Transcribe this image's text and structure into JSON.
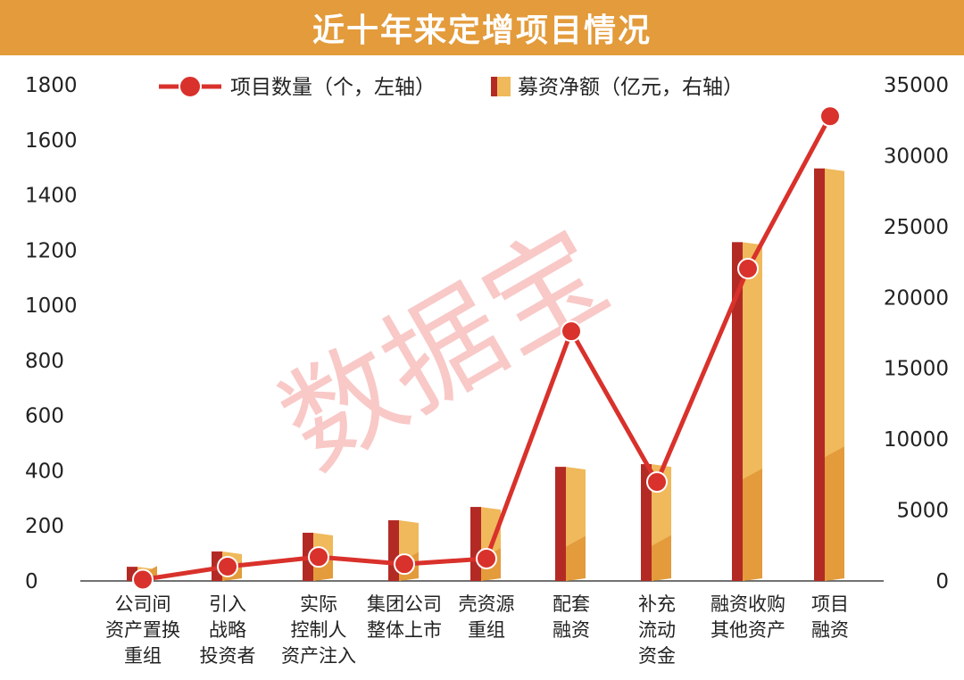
{
  "chart_data": {
    "type": "bar+line",
    "title": "近十年来定增项目情况",
    "categories": [
      [
        "公司间",
        "资产置换",
        "重组"
      ],
      [
        "引入",
        "战略",
        "投资者"
      ],
      [
        "实际",
        "控制人",
        "资产注入"
      ],
      [
        "集团公司",
        "整体上市"
      ],
      [
        "壳资源",
        "重组"
      ],
      [
        "配套",
        "融资"
      ],
      [
        "补充",
        "流动",
        "资金"
      ],
      [
        "融资收购",
        "其他资产"
      ],
      [
        "项目",
        "融资"
      ]
    ],
    "series": [
      {
        "name": "项目数量（个，左轴）",
        "type": "line",
        "axis": "left",
        "color": "#D9312B",
        "values": [
          5,
          52,
          87,
          61,
          81,
          906,
          359,
          1133,
          1686
        ]
      },
      {
        "name": "募资净额（亿元，右轴）",
        "type": "bar",
        "axis": "right",
        "color": "#E9A443",
        "values": [
          1000,
          2080,
          3400,
          4280,
          5220,
          8050,
          8240,
          23900,
          29100
        ]
      }
    ],
    "left_axis": {
      "ylim": [
        0,
        1800
      ],
      "ticks": [
        "0",
        "200",
        "400",
        "600",
        "800",
        "1000",
        "1200",
        "1400",
        "1600",
        "1800"
      ]
    },
    "right_axis": {
      "ylim": [
        0,
        35000
      ],
      "ticks": [
        "0",
        "5000",
        "10000",
        "15000",
        "20000",
        "25000",
        "30000",
        "35000"
      ]
    },
    "legend_position": "top",
    "watermark": "数据宝"
  }
}
